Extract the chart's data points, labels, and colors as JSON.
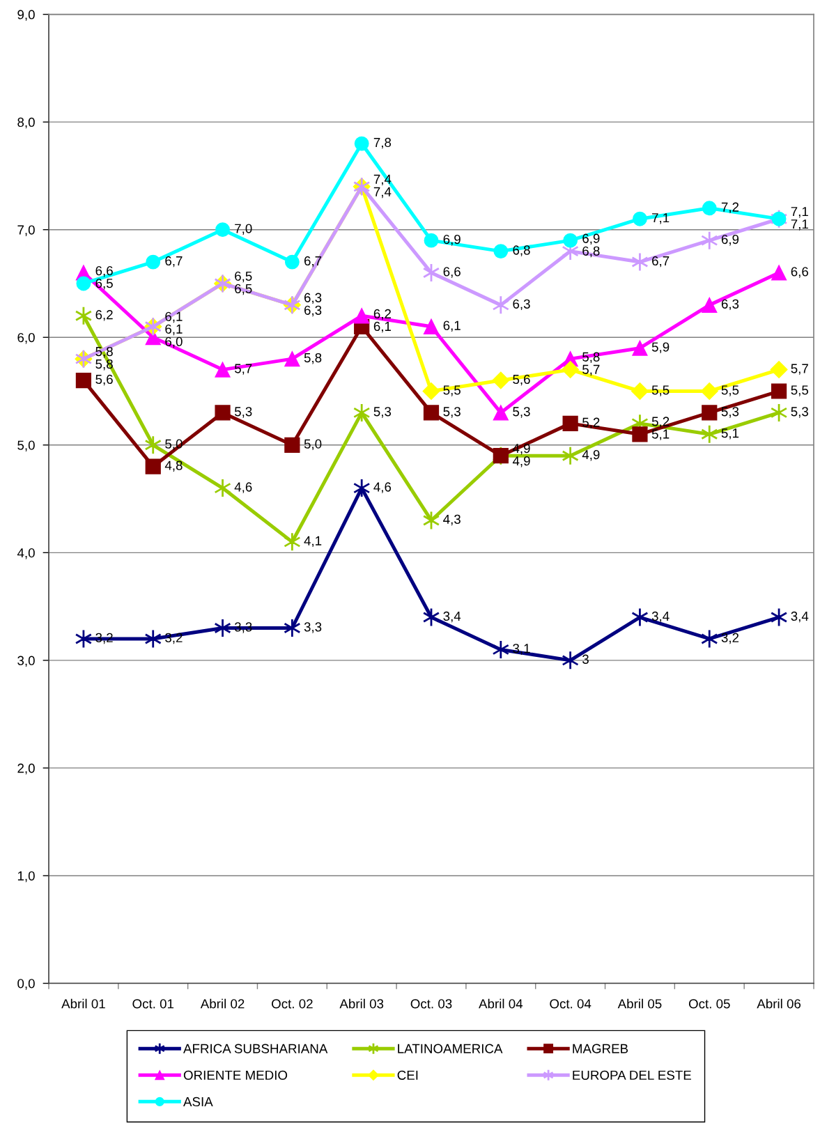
{
  "chart_data": {
    "type": "line",
    "categories": [
      "Abril 01",
      "Oct. 01",
      "Abril 02",
      "Oct. 02",
      "Abril 03",
      "Oct. 03",
      "Abril 04",
      "Oct. 04",
      "Abril 05",
      "Oct. 05",
      "Abril 06"
    ],
    "ylim": [
      0,
      9
    ],
    "yticks": [
      {
        "value": 0,
        "label": "0,0"
      },
      {
        "value": 1,
        "label": "1,0"
      },
      {
        "value": 2,
        "label": "2,0"
      },
      {
        "value": 3,
        "label": "3,0"
      },
      {
        "value": 4,
        "label": "4,0"
      },
      {
        "value": 5,
        "label": "5,0"
      },
      {
        "value": 6,
        "label": "6,0"
      },
      {
        "value": 7,
        "label": "7,0"
      },
      {
        "value": 8,
        "label": "8,0"
      },
      {
        "value": 9,
        "label": "9,0"
      }
    ],
    "grid": "y",
    "legend": "bottom",
    "line_style": "solid",
    "series": [
      {
        "name": "AFRICA SUBSHARIANA",
        "color": "#000080",
        "marker": "cross",
        "values": [
          3.2,
          3.2,
          3.3,
          3.3,
          4.6,
          3.4,
          3.1,
          3,
          3.4,
          3.2,
          3.4
        ],
        "value_labels": [
          "3,2",
          "3,2",
          "3,3",
          "3,3",
          "4,6",
          "3,4",
          "3,1",
          "3",
          "3,4",
          "3,2",
          "3,4"
        ]
      },
      {
        "name": "LATINOAMERICA",
        "color": "#99cc00",
        "marker": "cross",
        "values": [
          6.2,
          5.0,
          4.6,
          4.1,
          5.3,
          4.3,
          4.9,
          4.9,
          5.2,
          5.1,
          5.3
        ],
        "value_labels": [
          "6,2",
          "5,0",
          "4,6",
          "4,1",
          "5,3",
          "4,3",
          "4,9",
          "4,9",
          "5,2",
          "5,1",
          "5,3"
        ]
      },
      {
        "name": "MAGREB",
        "color": "#800000",
        "marker": "square",
        "values": [
          5.6,
          4.8,
          5.3,
          5.0,
          6.1,
          5.3,
          4.9,
          5.2,
          5.1,
          5.3,
          5.5
        ],
        "value_labels": [
          "5,6",
          "4,8",
          "5,3",
          "5,0",
          "6,1",
          "5,3",
          "4,9",
          "5,2",
          "5,1",
          "5,3",
          "5,5"
        ]
      },
      {
        "name": "ORIENTE MEDIO",
        "color": "#ff00ff",
        "marker": "triangle",
        "values": [
          6.6,
          6.0,
          5.7,
          5.8,
          6.2,
          6.1,
          5.3,
          5.8,
          5.9,
          6.3,
          6.6
        ],
        "value_labels": [
          "6,6",
          "6,0",
          "5,7",
          "5,8",
          "6,2",
          "6,1",
          "5,3",
          "5,8",
          "5,9",
          "6,3",
          "6,6"
        ]
      },
      {
        "name": "CEI",
        "color": "#ffff00",
        "marker": "diamond",
        "values": [
          5.8,
          6.1,
          6.5,
          6.3,
          7.4,
          5.5,
          5.6,
          5.7,
          5.5,
          5.5,
          5.7
        ],
        "value_labels": [
          "5,8",
          "6,1",
          "6,5",
          "6,3",
          "7,4",
          "5,5",
          "5,6",
          "5,7",
          "5,5",
          "5,5",
          "5,7"
        ]
      },
      {
        "name": "EUROPA DEL ESTE",
        "color": "#cc99ff",
        "marker": "cross",
        "values": [
          5.8,
          6.1,
          6.5,
          6.3,
          7.4,
          6.6,
          6.3,
          6.8,
          6.7,
          6.9,
          7.1
        ],
        "value_labels": [
          "5,8",
          "6,1",
          "6,5",
          "6,3",
          "7,4",
          "6,6",
          "6,3",
          "6,8",
          "6,7",
          "6,9",
          "7,1"
        ]
      },
      {
        "name": "ASIA",
        "color": "#00ffff",
        "marker": "circle",
        "values": [
          6.5,
          6.7,
          7.0,
          6.7,
          7.8,
          6.9,
          6.8,
          6.9,
          7.1,
          7.2,
          7.1
        ],
        "value_labels": [
          "6,5",
          "6,7",
          "7,0",
          "6,7",
          "7,8",
          "6,9",
          "6,8",
          "6,9",
          "7,1",
          "7,2",
          "7,1"
        ]
      }
    ]
  }
}
